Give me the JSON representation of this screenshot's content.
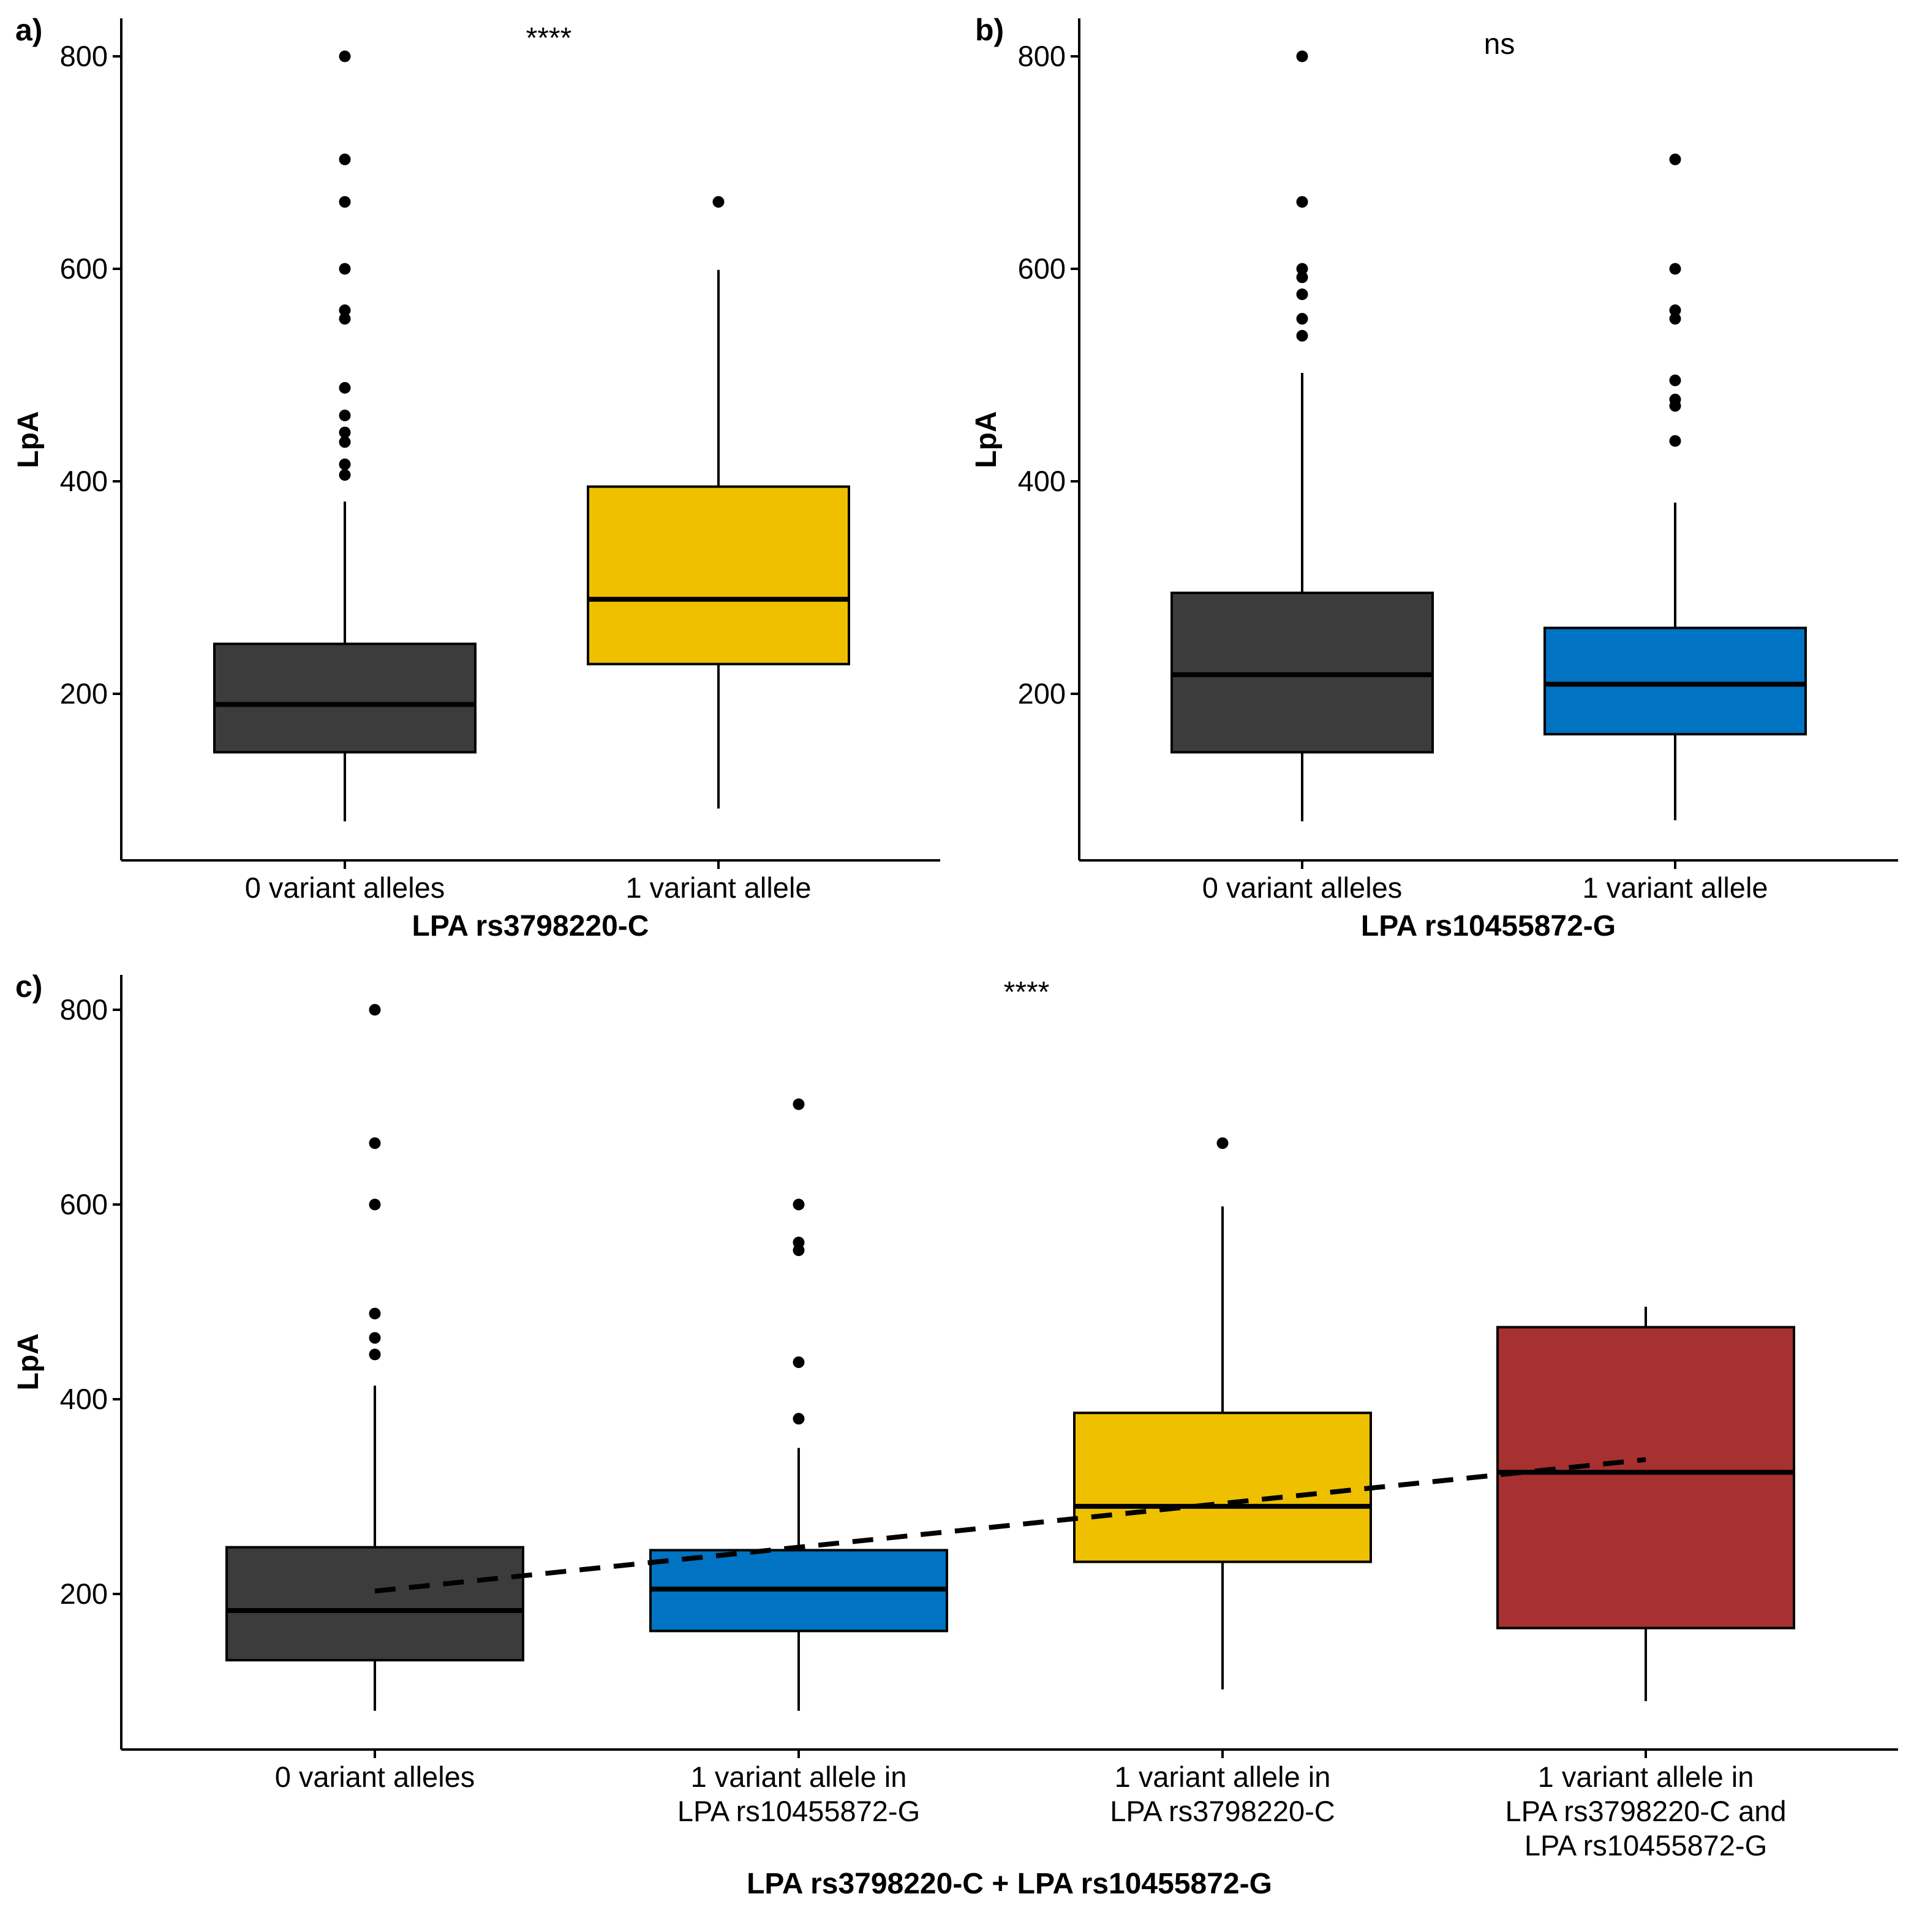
{
  "figure": {
    "background": "#ffffff"
  },
  "chart_data": [
    {
      "type": "box",
      "panel_label": "a)",
      "xlabel": "LPA rs3798220-C",
      "ylabel": "LpA",
      "ylim": [
        45,
        835
      ],
      "yticks": [
        200,
        400,
        600,
        800
      ],
      "significance": "****",
      "significance_position": "top-center",
      "categories": [
        "0 variant alleles",
        "1 variant allele"
      ],
      "boxes": [
        {
          "label": "0 variant alleles",
          "color": "#3c3c3c",
          "whisker_low": 80,
          "q1": 145,
          "median": 190,
          "q3": 247,
          "whisker_high": 381,
          "outliers": [
            800,
            703,
            663,
            600,
            561,
            553,
            488,
            462,
            446,
            437,
            416,
            406
          ]
        },
        {
          "label": "1 variant allele",
          "color": "#efc000",
          "whisker_low": 92,
          "q1": 228,
          "median": 289,
          "q3": 395,
          "whisker_high": 599,
          "outliers": [
            663
          ]
        }
      ]
    },
    {
      "type": "box",
      "panel_label": "b)",
      "xlabel": "LPA rs10455872-G",
      "ylabel": "LpA",
      "ylim": [
        45,
        835
      ],
      "yticks": [
        200,
        400,
        600,
        800
      ],
      "significance": "ns",
      "significance_position": "top-center",
      "categories": [
        "0 variant alleles",
        "1 variant allele"
      ],
      "boxes": [
        {
          "label": "0 variant alleles",
          "color": "#3c3c3c",
          "whisker_low": 80,
          "q1": 145,
          "median": 218,
          "q3": 295,
          "whisker_high": 502,
          "outliers": [
            800,
            663,
            600,
            592,
            576,
            553,
            537
          ]
        },
        {
          "label": "1 variant allele",
          "color": "#0073c2",
          "whisker_low": 81,
          "q1": 162,
          "median": 209,
          "q3": 262,
          "whisker_high": 380,
          "outliers": [
            703,
            600,
            561,
            553,
            495,
            477,
            471,
            438
          ]
        }
      ]
    },
    {
      "type": "box",
      "panel_label": "c)",
      "xlabel": "LPA rs3798220-C + LPA rs10455872-G",
      "ylabel": "LpA",
      "ylim": [
        45,
        835
      ],
      "yticks": [
        200,
        400,
        600,
        800
      ],
      "significance": "****",
      "significance_position": "top-center",
      "categories": [
        "0 variant alleles",
        "1 variant allele in\nLPA rs10455872-G",
        "1 variant allele in\nLPA rs3798220-C",
        "1 variant allele in\nLPA rs3798220-C and\nLPA rs10455872-G"
      ],
      "boxes": [
        {
          "label": "0 variant alleles",
          "color": "#3c3c3c",
          "whisker_low": 80,
          "q1": 132,
          "median": 183,
          "q3": 248,
          "whisker_high": 414,
          "outliers": [
            800,
            663,
            600,
            488,
            463,
            446
          ]
        },
        {
          "label": "1 variant allele in LPA rs10455872-G",
          "color": "#0073c2",
          "whisker_low": 80,
          "q1": 162,
          "median": 205,
          "q3": 245,
          "whisker_high": 350,
          "outliers": [
            703,
            600,
            561,
            553,
            438,
            380
          ]
        },
        {
          "label": "1 variant allele in LPA rs3798220-C",
          "color": "#efc000",
          "whisker_low": 102,
          "q1": 233,
          "median": 290,
          "q3": 386,
          "whisker_high": 598,
          "outliers": [
            663
          ]
        },
        {
          "label": "1 variant allele in LPA rs3798220-C and LPA rs10455872-G",
          "color": "#a73030",
          "whisker_low": 90,
          "q1": 165,
          "median": 325,
          "q3": 474,
          "whisker_high": 495,
          "outliers": []
        }
      ],
      "trend_line": {
        "style": "dashed",
        "from": {
          "category_index": 0,
          "y": 203
        },
        "to": {
          "category_index": 3,
          "y": 338
        }
      }
    }
  ]
}
